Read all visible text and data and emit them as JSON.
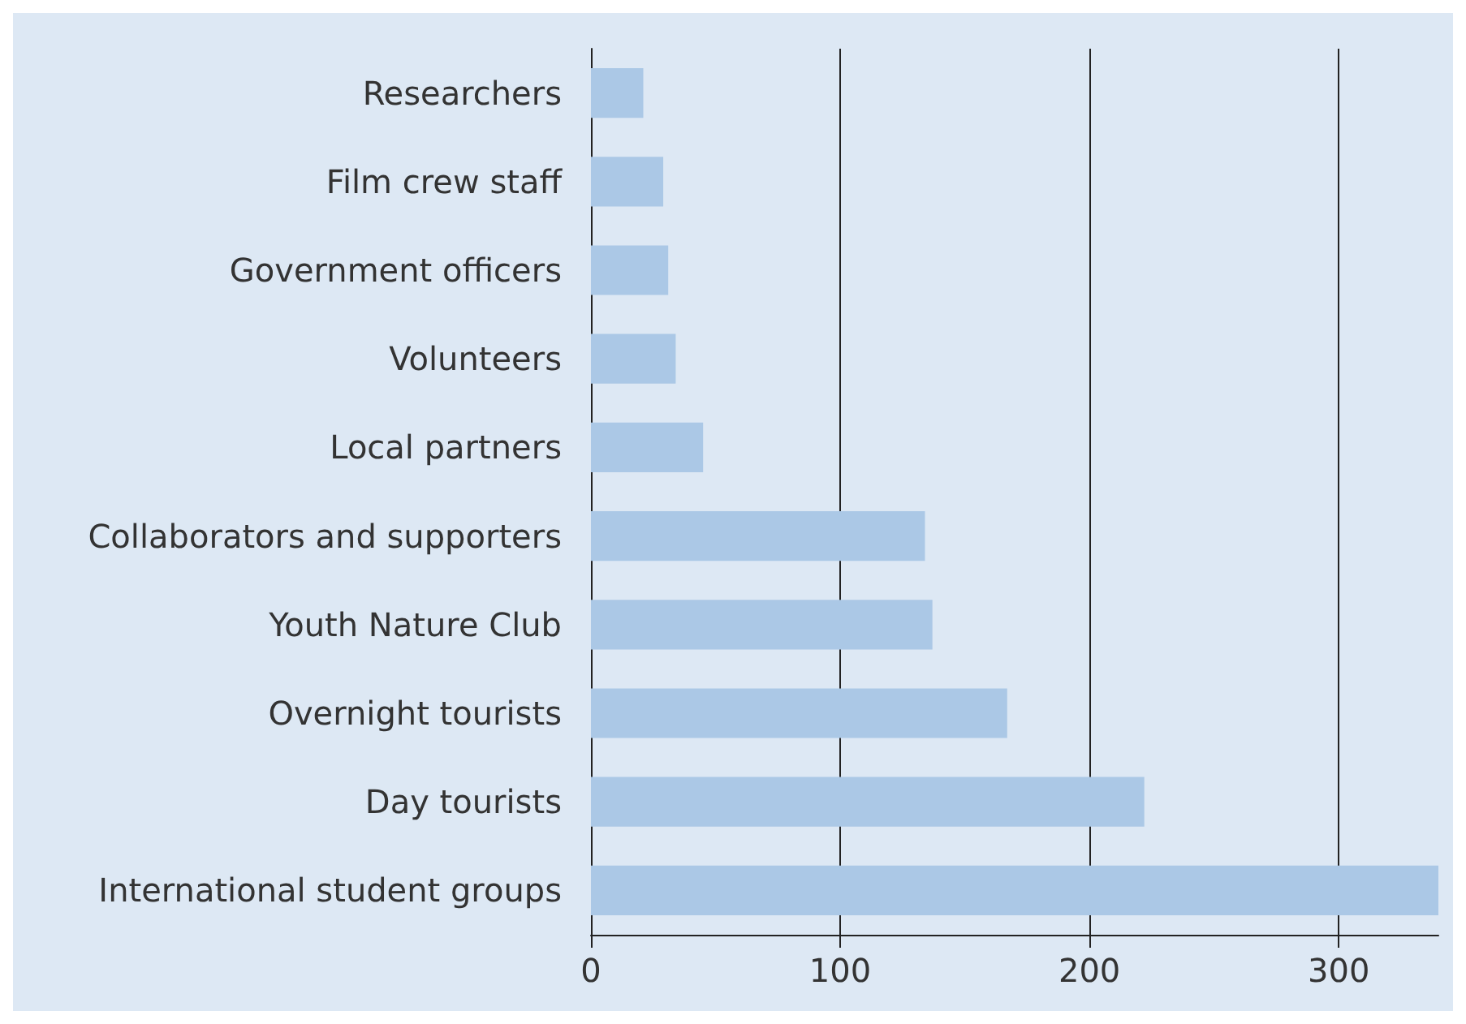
{
  "chart_data": {
    "type": "bar",
    "orientation": "horizontal",
    "categories": [
      "Researchers",
      "Film crew staff",
      "Government officers",
      "Volunteers",
      "Local partners",
      "Collaborators and supporters",
      "Youth Nature Club",
      "Overnight tourists",
      "Day tourists",
      "International student groups"
    ],
    "values": [
      21,
      29,
      31,
      34,
      45,
      134,
      137,
      167,
      222,
      340
    ],
    "color": "#abc8e6",
    "xlim": [
      0,
      340
    ],
    "xticks": [
      0,
      100,
      200,
      300
    ],
    "grid": "x"
  }
}
